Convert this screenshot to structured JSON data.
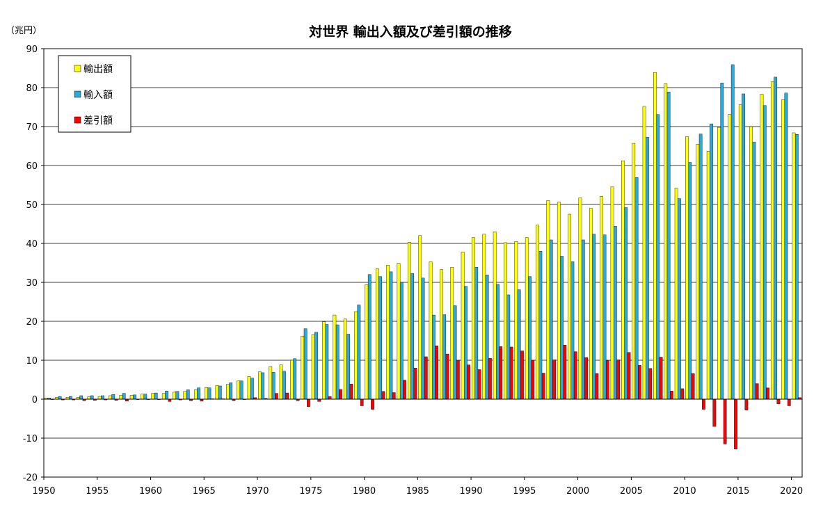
{
  "chart_data": {
    "type": "bar",
    "title": "対世界 輸出入額及び差引額の推移",
    "unit_label": "（兆円）",
    "ylim": [
      -20,
      90
    ],
    "yticks": [
      90,
      80,
      70,
      60,
      50,
      40,
      30,
      20,
      10,
      0,
      -10,
      -20
    ],
    "xticks": [
      "1950",
      "1955",
      "1960",
      "1965",
      "1970",
      "1975",
      "1980",
      "1985",
      "1990",
      "1995",
      "2000",
      "2005",
      "2010",
      "2015",
      "2020"
    ],
    "grid": true,
    "legend_position": "top-left",
    "categories": [
      "1950",
      "1951",
      "1952",
      "1953",
      "1954",
      "1955",
      "1956",
      "1957",
      "1958",
      "1959",
      "1960",
      "1961",
      "1962",
      "1963",
      "1964",
      "1965",
      "1966",
      "1967",
      "1968",
      "1969",
      "1970",
      "1971",
      "1972",
      "1973",
      "1974",
      "1975",
      "1976",
      "1977",
      "1978",
      "1979",
      "1980",
      "1981",
      "1982",
      "1983",
      "1984",
      "1985",
      "1986",
      "1987",
      "1988",
      "1989",
      "1990",
      "1991",
      "1992",
      "1993",
      "1994",
      "1995",
      "1996",
      "1997",
      "1998",
      "1999",
      "2000",
      "2001",
      "2002",
      "2003",
      "2004",
      "2005",
      "2006",
      "2007",
      "2008",
      "2009",
      "2010",
      "2011",
      "2012",
      "2013",
      "2014",
      "2015",
      "2016",
      "2017",
      "2018",
      "2019",
      "2020"
    ],
    "series": [
      {
        "name": "輸出額",
        "color": "#ffff00",
        "values": [
          0.3,
          0.5,
          0.5,
          0.5,
          0.6,
          0.7,
          0.9,
          1.0,
          1.0,
          1.3,
          1.5,
          1.5,
          1.8,
          2.0,
          2.4,
          3.0,
          3.5,
          3.8,
          4.7,
          5.8,
          7.0,
          8.4,
          8.8,
          10.0,
          16.2,
          16.6,
          19.9,
          21.6,
          20.6,
          22.5,
          29.4,
          33.5,
          34.4,
          34.9,
          40.3,
          42.0,
          35.3,
          33.3,
          33.9,
          37.8,
          41.5,
          42.4,
          43.0,
          40.2,
          40.5,
          41.5,
          44.7,
          51.0,
          50.6,
          47.5,
          51.7,
          49.0,
          52.1,
          54.5,
          61.2,
          65.7,
          75.2,
          83.9,
          81.0,
          54.2,
          67.4,
          65.5,
          63.7,
          69.8,
          73.1,
          75.6,
          70.0,
          78.3,
          81.5,
          76.9,
          68.4
        ]
      },
      {
        "name": "輸入額",
        "color": "#29a9e0",
        "values": [
          0.3,
          0.7,
          0.7,
          0.9,
          0.9,
          0.9,
          1.2,
          1.5,
          1.1,
          1.3,
          1.6,
          2.1,
          2.0,
          2.4,
          2.9,
          2.9,
          3.4,
          4.2,
          4.7,
          5.4,
          6.8,
          6.9,
          7.2,
          10.4,
          18.1,
          17.2,
          19.2,
          19.1,
          16.7,
          24.2,
          32.0,
          31.5,
          32.7,
          30.0,
          32.3,
          31.1,
          21.6,
          21.7,
          24.0,
          29.0,
          33.9,
          31.9,
          29.5,
          26.8,
          28.1,
          31.5,
          38.0,
          40.9,
          36.7,
          35.3,
          40.9,
          42.4,
          42.2,
          44.4,
          49.2,
          56.9,
          67.3,
          73.1,
          78.9,
          51.5,
          60.8,
          68.1,
          70.7,
          81.2,
          85.9,
          78.4,
          66.0,
          75.4,
          82.7,
          78.6,
          68.0
        ]
      },
      {
        "name": "差引額",
        "color": "#ff0000",
        "values": [
          0.0,
          -0.2,
          -0.2,
          -0.4,
          -0.3,
          -0.2,
          -0.3,
          -0.5,
          -0.1,
          0.0,
          -0.1,
          -0.6,
          -0.2,
          -0.4,
          -0.5,
          0.1,
          0.1,
          -0.4,
          0.0,
          0.4,
          0.2,
          1.5,
          1.6,
          -0.4,
          -1.9,
          -0.6,
          0.7,
          2.5,
          3.9,
          -1.7,
          -2.6,
          2.0,
          1.7,
          4.9,
          8.0,
          10.9,
          13.7,
          11.6,
          9.9,
          8.8,
          7.6,
          10.5,
          13.5,
          13.4,
          12.4,
          10.0,
          6.7,
          10.1,
          13.9,
          12.2,
          10.7,
          6.6,
          9.9,
          10.1,
          12.0,
          8.7,
          7.9,
          10.8,
          2.1,
          2.7,
          6.6,
          -2.6,
          -7.0,
          -11.5,
          -12.8,
          -2.8,
          4.0,
          2.9,
          -1.2,
          -1.7,
          0.4
        ]
      }
    ]
  }
}
